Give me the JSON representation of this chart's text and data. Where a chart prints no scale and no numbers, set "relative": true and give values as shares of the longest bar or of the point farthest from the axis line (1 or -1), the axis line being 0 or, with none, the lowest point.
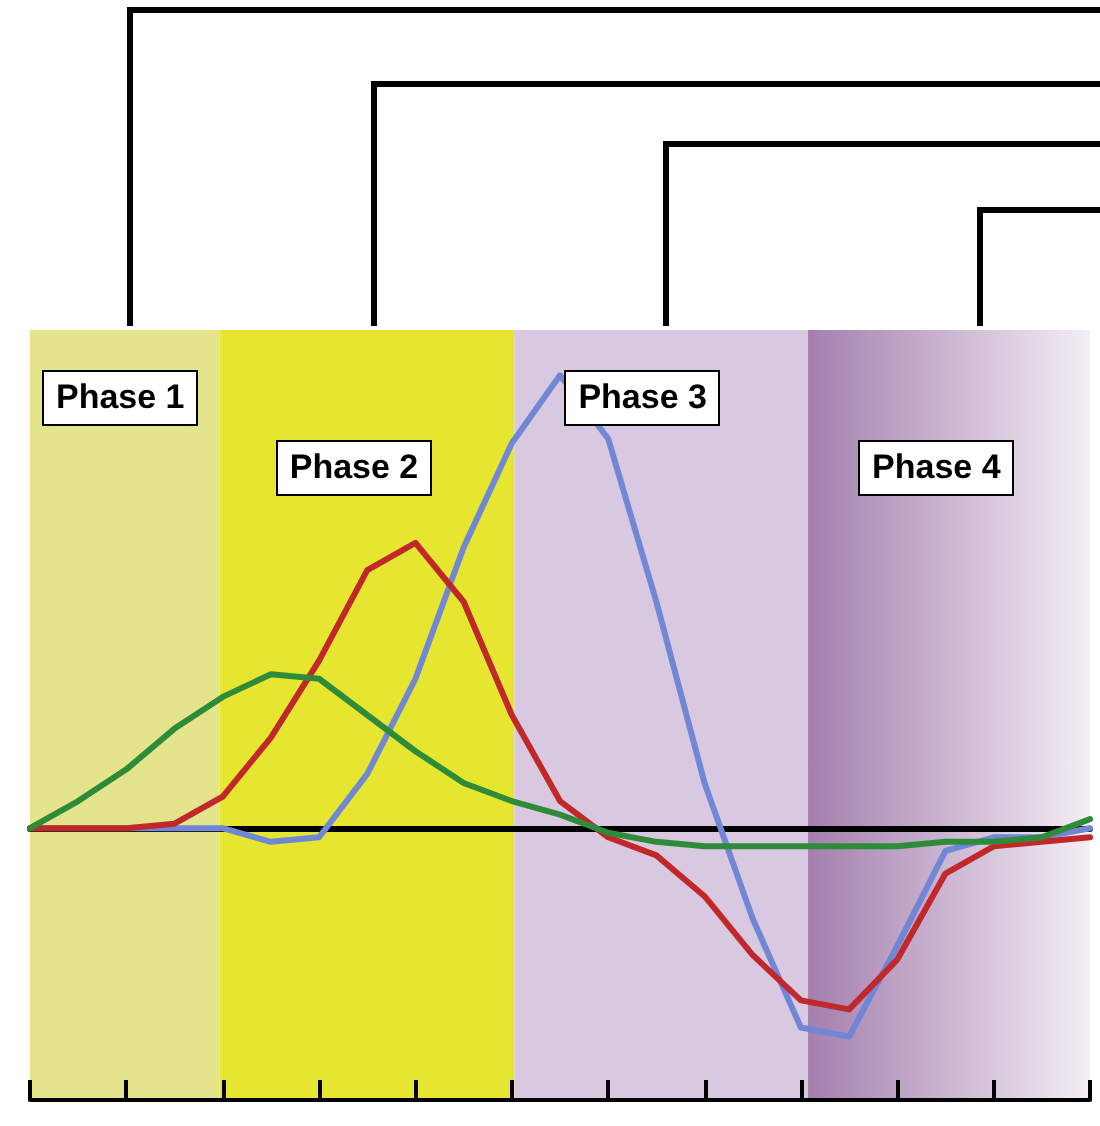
{
  "chart_data": {
    "type": "line",
    "relative": true,
    "categories": [
      null,
      null,
      null,
      null,
      null,
      null,
      null,
      null,
      null,
      null,
      null,
      null,
      null,
      null,
      null,
      null,
      null,
      null,
      null,
      null,
      null,
      null,
      null
    ],
    "marker": "none",
    "line_style": "solid",
    "series": [
      {
        "color": "#6f87d4",
        "values": [
          0,
          0,
          0,
          0,
          0,
          -0.03,
          -0.02,
          0.12,
          0.33,
          0.62,
          0.85,
          1,
          0.86,
          0.5,
          0.1,
          -0.2,
          -0.44,
          -0.46,
          -0.26,
          -0.05,
          -0.02,
          -0.02,
          0
        ]
      },
      {
        "color": "#c0282a",
        "values": [
          0,
          0,
          0,
          0.01,
          0.07,
          0.2,
          0.37,
          0.57,
          0.63,
          0.5,
          0.25,
          0.06,
          -0.02,
          -0.06,
          -0.15,
          -0.28,
          -0.38,
          -0.4,
          -0.29,
          -0.1,
          -0.04,
          -0.03,
          -0.02
        ]
      },
      {
        "color": "#2e8b3a",
        "values": [
          0,
          0.06,
          0.13,
          0.22,
          0.29,
          0.34,
          0.33,
          0.25,
          0.17,
          0.1,
          0.06,
          0.03,
          -0.01,
          -0.03,
          -0.04,
          -0.04,
          -0.04,
          -0.04,
          -0.04,
          -0.03,
          -0.03,
          -0.02,
          0.02
        ]
      }
    ],
    "annotations": [
      "Phase 1",
      "Phase 2",
      "Phase 3",
      "Phase 4"
    ]
  }
}
